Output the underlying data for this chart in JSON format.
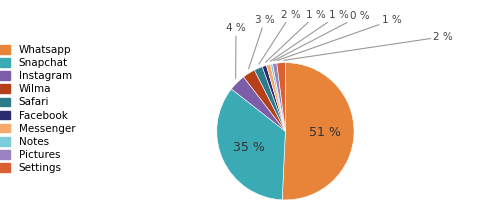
{
  "labels": [
    "Whatsapp",
    "Snapchat",
    "Instagram",
    "Wilma",
    "Safari",
    "Facebook",
    "Messenger",
    "Notes",
    "Pictures",
    "Settings"
  ],
  "values": [
    51,
    35,
    4,
    3,
    2,
    1,
    1,
    0.5,
    1,
    2
  ],
  "display_pcts": [
    "51 %",
    "35 %",
    "4 %",
    "3 %",
    "2 %",
    "1 %",
    "1 %",
    "0 %",
    "1 %",
    "2 %"
  ],
  "colors": [
    "#E8843A",
    "#3AABB5",
    "#7B5EA7",
    "#B5401A",
    "#2E7B8C",
    "#2B2B72",
    "#F5A96A",
    "#7BCDD9",
    "#9B82C0",
    "#D96030"
  ],
  "figsize": [
    5.0,
    2.18
  ],
  "dpi": 100
}
